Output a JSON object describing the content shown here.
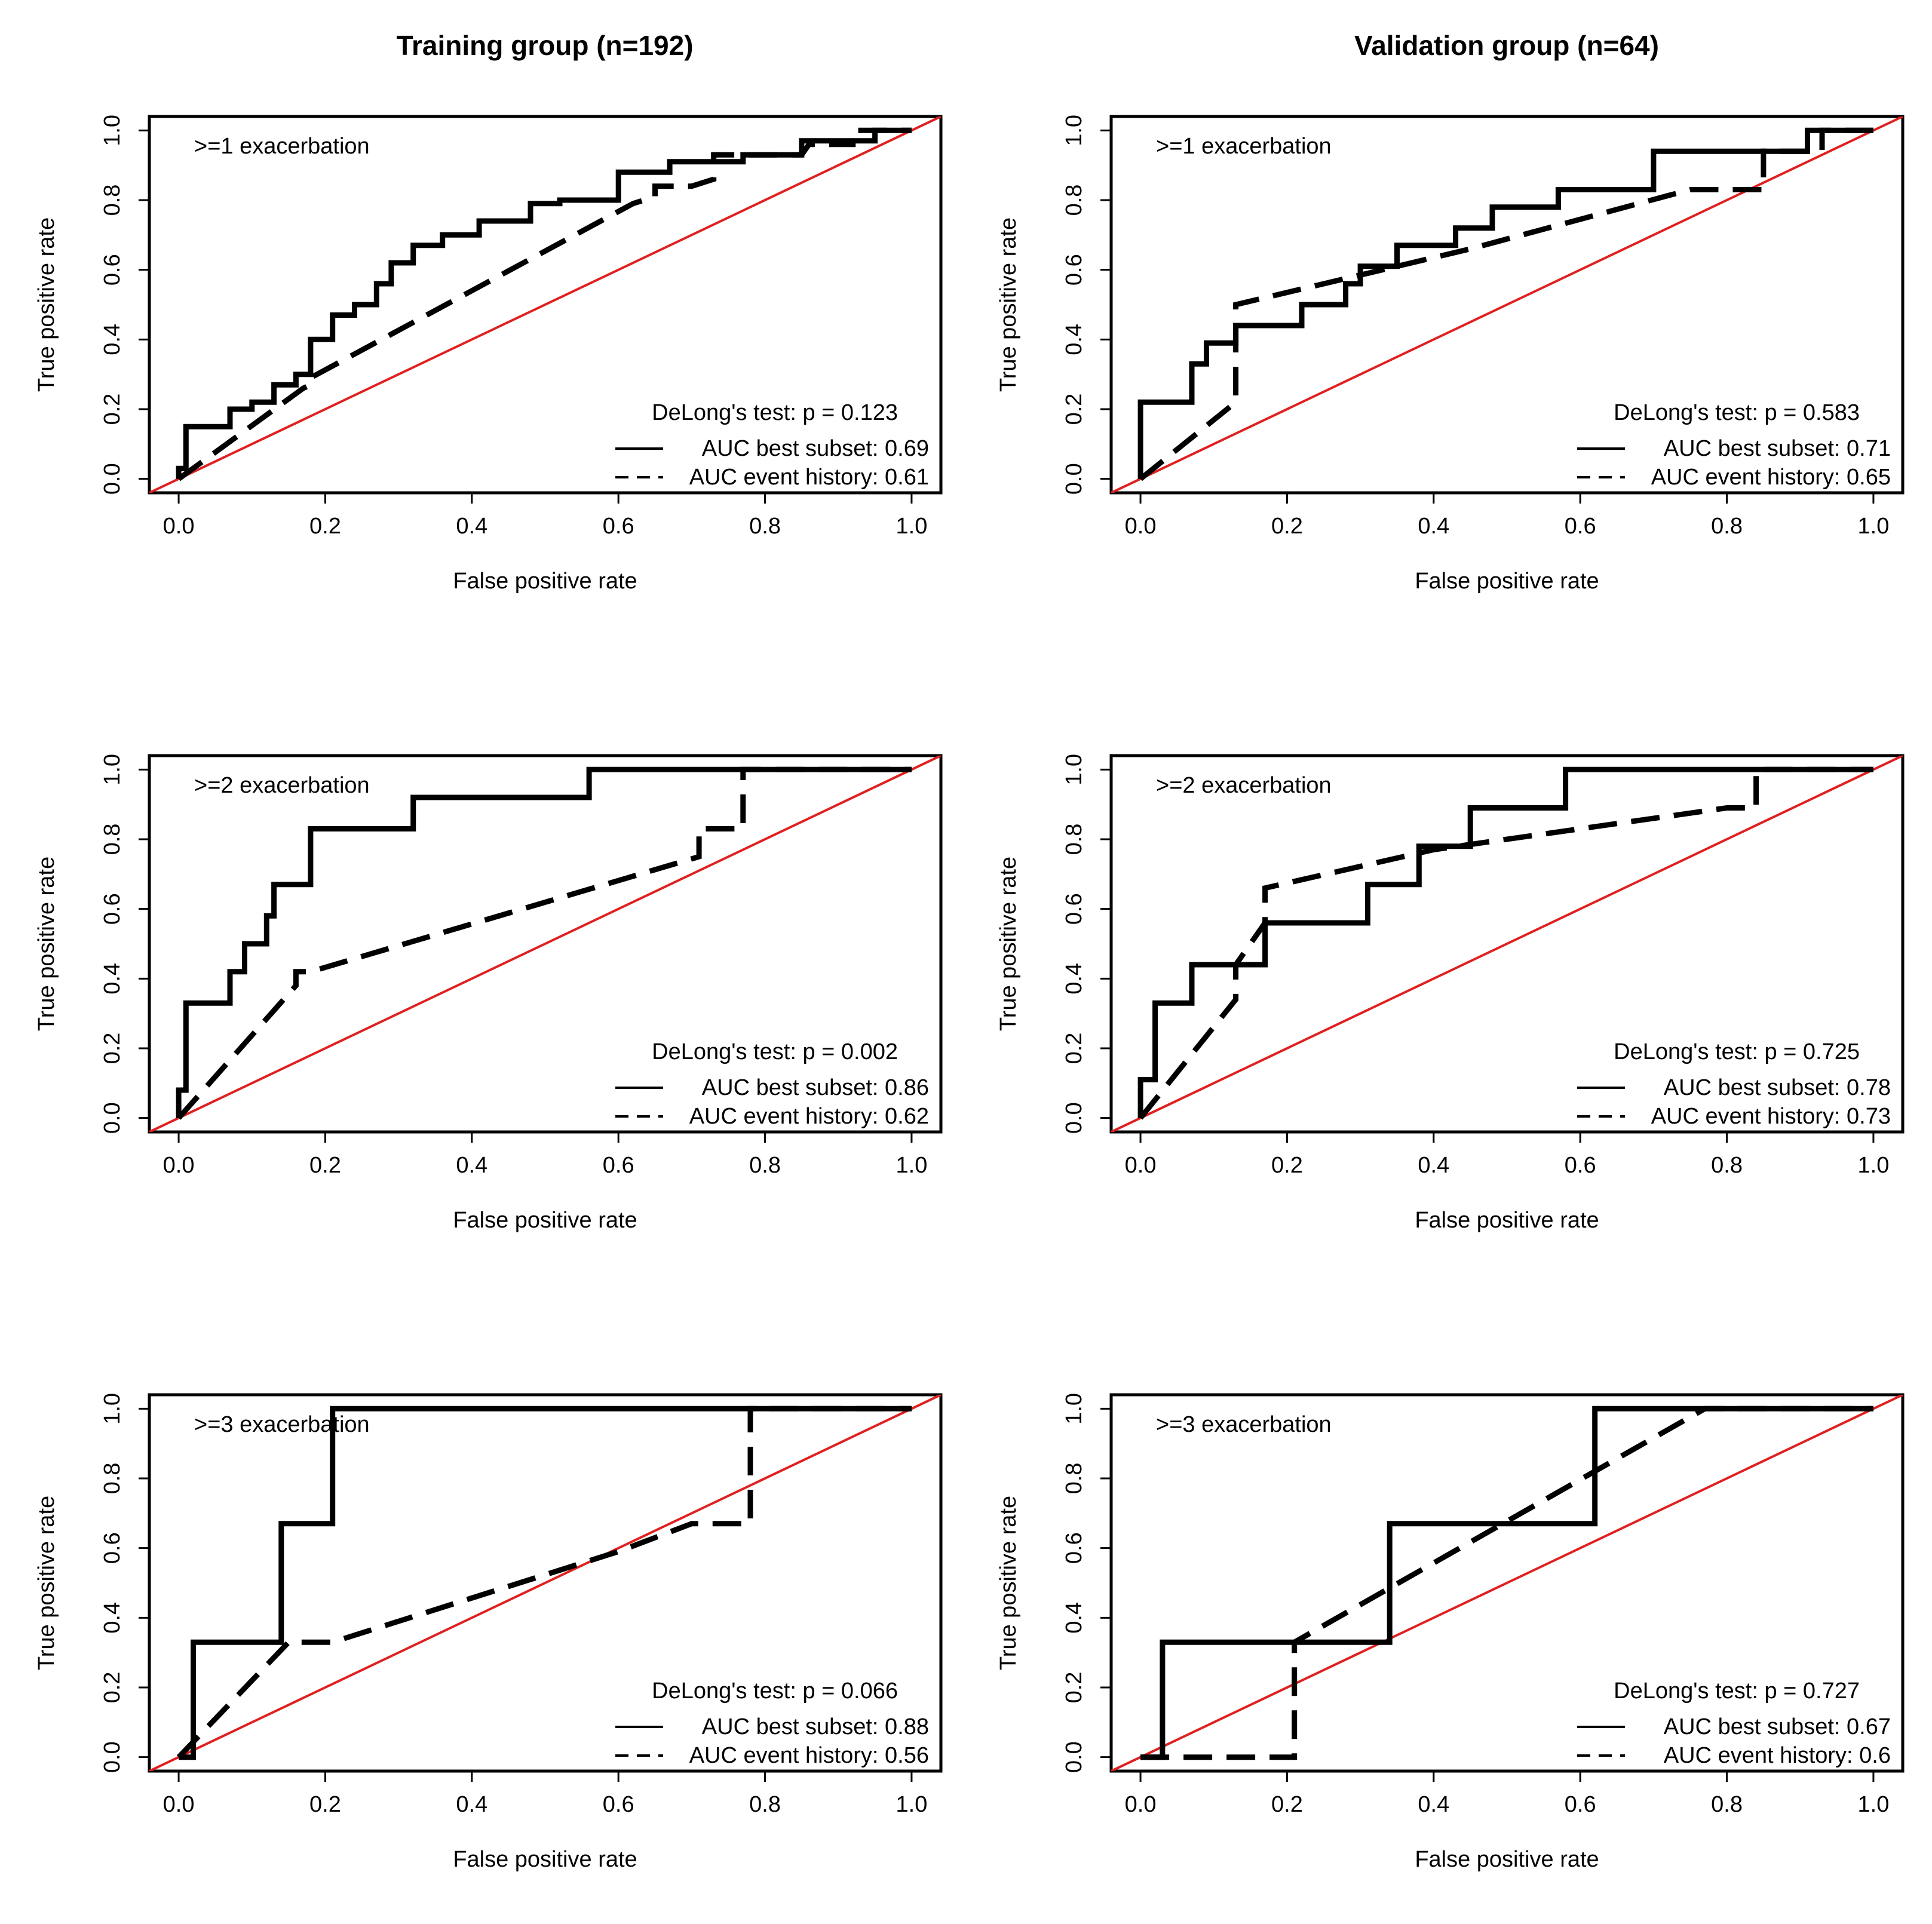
{
  "figure": {
    "column_titles": [
      "Training group (n=192)",
      "Validation group (n=64)"
    ]
  },
  "chart_data": [
    {
      "type": "line",
      "id": "train-1",
      "group": "Training group (n=192)",
      "panel_label": ">=1 exacerbation",
      "xlabel": "False positive rate",
      "ylabel": "True positive rate",
      "xlim": [
        0,
        1
      ],
      "ylim": [
        0,
        1
      ],
      "xticks": [
        "0.0",
        "0.2",
        "0.4",
        "0.6",
        "0.8",
        "1.0"
      ],
      "yticks": [
        "0.0",
        "0.2",
        "0.4",
        "0.6",
        "0.8",
        "1.0"
      ],
      "delong": "DeLong's test: p = 0.123",
      "series": [
        {
          "name": "AUC best subset: 0.69",
          "style": "solid",
          "x": [
            0,
            0,
            0.01,
            0.01,
            0.07,
            0.07,
            0.1,
            0.1,
            0.13,
            0.13,
            0.16,
            0.16,
            0.18,
            0.18,
            0.21,
            0.21,
            0.24,
            0.24,
            0.27,
            0.27,
            0.29,
            0.29,
            0.32,
            0.32,
            0.36,
            0.36,
            0.41,
            0.41,
            0.48,
            0.48,
            0.52,
            0.52,
            0.6,
            0.6,
            0.67,
            0.67,
            0.77,
            0.77,
            0.85,
            0.85,
            0.95,
            0.95,
            1.0
          ],
          "y": [
            0,
            0.03,
            0.03,
            0.15,
            0.15,
            0.2,
            0.2,
            0.22,
            0.22,
            0.27,
            0.27,
            0.3,
            0.3,
            0.4,
            0.4,
            0.47,
            0.47,
            0.5,
            0.5,
            0.56,
            0.56,
            0.62,
            0.62,
            0.67,
            0.67,
            0.7,
            0.7,
            0.74,
            0.74,
            0.79,
            0.79,
            0.8,
            0.8,
            0.88,
            0.88,
            0.91,
            0.91,
            0.93,
            0.93,
            0.97,
            0.97,
            1.0,
            1.0
          ]
        },
        {
          "name": "AUC event history: 0.61",
          "style": "dashed",
          "x": [
            0,
            0.17,
            0.17,
            0.18,
            0.18,
            0.62,
            0.65,
            0.65,
            0.7,
            0.73,
            0.73,
            0.85,
            0.86,
            0.92,
            0.92,
            1.0
          ],
          "y": [
            0,
            0.26,
            0.26,
            0.27,
            0.29,
            0.79,
            0.81,
            0.84,
            0.84,
            0.86,
            0.93,
            0.93,
            0.96,
            0.96,
            1.0,
            1.0
          ]
        }
      ]
    },
    {
      "type": "line",
      "id": "val-1",
      "group": "Validation group (n=64)",
      "panel_label": ">=1 exacerbation",
      "xlabel": "False positive rate",
      "ylabel": "True positive rate",
      "xlim": [
        0,
        1
      ],
      "ylim": [
        0,
        1
      ],
      "xticks": [
        "0.0",
        "0.2",
        "0.4",
        "0.6",
        "0.8",
        "1.0"
      ],
      "yticks": [
        "0.0",
        "0.2",
        "0.4",
        "0.6",
        "0.8",
        "1.0"
      ],
      "delong": "DeLong's test: p = 0.583",
      "series": [
        {
          "name": "AUC best subset: 0.71",
          "style": "solid",
          "x": [
            0,
            0,
            0.07,
            0.07,
            0.09,
            0.09,
            0.13,
            0.13,
            0.22,
            0.22,
            0.28,
            0.28,
            0.3,
            0.3,
            0.35,
            0.35,
            0.43,
            0.43,
            0.48,
            0.48,
            0.57,
            0.57,
            0.7,
            0.7,
            0.91,
            0.91,
            1.0
          ],
          "y": [
            0,
            0.22,
            0.22,
            0.33,
            0.33,
            0.39,
            0.39,
            0.44,
            0.44,
            0.5,
            0.5,
            0.56,
            0.56,
            0.61,
            0.61,
            0.67,
            0.67,
            0.72,
            0.72,
            0.78,
            0.78,
            0.83,
            0.83,
            0.94,
            0.94,
            1.0,
            1.0
          ]
        },
        {
          "name": "AUC event history: 0.65",
          "style": "dashed",
          "x": [
            0,
            0.13,
            0.13,
            0.13,
            0.45,
            0.75,
            0.85,
            0.85,
            0.93,
            0.93,
            1.0
          ],
          "y": [
            0,
            0.22,
            0.22,
            0.5,
            0.66,
            0.83,
            0.83,
            0.94,
            0.94,
            1.0,
            1.0
          ]
        }
      ]
    },
    {
      "type": "line",
      "id": "train-2",
      "group": "Training group (n=192)",
      "panel_label": ">=2 exacerbation",
      "xlabel": "False positive rate",
      "ylabel": "True positive rate",
      "xlim": [
        0,
        1
      ],
      "ylim": [
        0,
        1
      ],
      "xticks": [
        "0.0",
        "0.2",
        "0.4",
        "0.6",
        "0.8",
        "1.0"
      ],
      "yticks": [
        "0.0",
        "0.2",
        "0.4",
        "0.6",
        "0.8",
        "1.0"
      ],
      "delong": "DeLong's test: p = 0.002",
      "series": [
        {
          "name": "AUC best subset: 0.86",
          "style": "solid",
          "x": [
            0,
            0,
            0.01,
            0.01,
            0.07,
            0.07,
            0.09,
            0.09,
            0.12,
            0.12,
            0.13,
            0.13,
            0.18,
            0.18,
            0.32,
            0.32,
            0.56,
            0.56,
            1.0
          ],
          "y": [
            0,
            0.08,
            0.08,
            0.33,
            0.33,
            0.42,
            0.42,
            0.5,
            0.5,
            0.58,
            0.58,
            0.67,
            0.67,
            0.83,
            0.83,
            0.92,
            0.92,
            1.0,
            1.0
          ]
        },
        {
          "name": "AUC event history: 0.62",
          "style": "dashed",
          "x": [
            0,
            0.16,
            0.16,
            0.18,
            0.71,
            0.71,
            0.77,
            0.77,
            1.0
          ],
          "y": [
            0,
            0.38,
            0.42,
            0.42,
            0.75,
            0.83,
            0.83,
            1.0,
            1.0
          ]
        }
      ]
    },
    {
      "type": "line",
      "id": "val-2",
      "group": "Validation group (n=64)",
      "panel_label": ">=2 exacerbation",
      "xlabel": "False positive rate",
      "ylabel": "True positive rate",
      "xlim": [
        0,
        1
      ],
      "ylim": [
        0,
        1
      ],
      "xticks": [
        "0.0",
        "0.2",
        "0.4",
        "0.6",
        "0.8",
        "1.0"
      ],
      "yticks": [
        "0.0",
        "0.2",
        "0.4",
        "0.6",
        "0.8",
        "1.0"
      ],
      "delong": "DeLong's test: p = 0.725",
      "series": [
        {
          "name": "AUC best subset: 0.78",
          "style": "solid",
          "x": [
            0,
            0,
            0.02,
            0.02,
            0.07,
            0.07,
            0.17,
            0.17,
            0.31,
            0.31,
            0.38,
            0.38,
            0.45,
            0.45,
            0.58,
            0.58,
            1.0
          ],
          "y": [
            0,
            0.11,
            0.11,
            0.33,
            0.33,
            0.44,
            0.44,
            0.56,
            0.56,
            0.67,
            0.67,
            0.78,
            0.78,
            0.89,
            0.89,
            1.0,
            1.0
          ]
        },
        {
          "name": "AUC event history: 0.73",
          "style": "dashed",
          "x": [
            0,
            0.13,
            0.13,
            0.17,
            0.17,
            0.4,
            0.8,
            0.84,
            0.84,
            1.0
          ],
          "y": [
            0,
            0.34,
            0.44,
            0.56,
            0.66,
            0.77,
            0.89,
            0.89,
            1.0,
            1.0
          ]
        }
      ]
    },
    {
      "type": "line",
      "id": "train-3",
      "group": "Training group (n=192)",
      "panel_label": ">=3 exacerbation",
      "xlabel": "False positive rate",
      "ylabel": "True positive rate",
      "xlim": [
        0,
        1
      ],
      "ylim": [
        0,
        1
      ],
      "xticks": [
        "0.0",
        "0.2",
        "0.4",
        "0.6",
        "0.8",
        "1.0"
      ],
      "yticks": [
        "0.0",
        "0.2",
        "0.4",
        "0.6",
        "0.8",
        "1.0"
      ],
      "delong": "DeLong's test: p = 0.066",
      "series": [
        {
          "name": "AUC best subset: 0.88",
          "style": "solid",
          "x": [
            0,
            0.02,
            0.02,
            0.14,
            0.14,
            0.21,
            0.21,
            1.0
          ],
          "y": [
            0,
            0,
            0.33,
            0.33,
            0.67,
            0.67,
            1.0,
            1.0
          ]
        },
        {
          "name": "AUC event history: 0.56",
          "style": "dashed",
          "x": [
            0,
            0.15,
            0.21,
            0.6,
            0.7,
            0.78,
            0.78,
            1.0
          ],
          "y": [
            0,
            0.33,
            0.33,
            0.59,
            0.67,
            0.67,
            1.0,
            1.0
          ]
        }
      ]
    },
    {
      "type": "line",
      "id": "val-3",
      "group": "Validation group (n=64)",
      "panel_label": ">=3 exacerbation",
      "xlabel": "False positive rate",
      "ylabel": "True positive rate",
      "xlim": [
        0,
        1
      ],
      "ylim": [
        0,
        1
      ],
      "xticks": [
        "0.0",
        "0.2",
        "0.4",
        "0.6",
        "0.8",
        "1.0"
      ],
      "yticks": [
        "0.0",
        "0.2",
        "0.4",
        "0.6",
        "0.8",
        "1.0"
      ],
      "delong": "DeLong's test: p = 0.727",
      "series": [
        {
          "name": "AUC best subset: 0.67",
          "style": "solid",
          "x": [
            0,
            0.03,
            0.03,
            0.34,
            0.34,
            0.62,
            0.62,
            1.0
          ],
          "y": [
            0,
            0,
            0.33,
            0.33,
            0.67,
            0.67,
            1.0,
            1.0
          ]
        },
        {
          "name": "AUC event history: 0.6",
          "style": "dashed",
          "x": [
            0,
            0.21,
            0.21,
            0.77,
            1.0
          ],
          "y": [
            0,
            0,
            0.33,
            1.0,
            1.0
          ]
        }
      ]
    }
  ]
}
